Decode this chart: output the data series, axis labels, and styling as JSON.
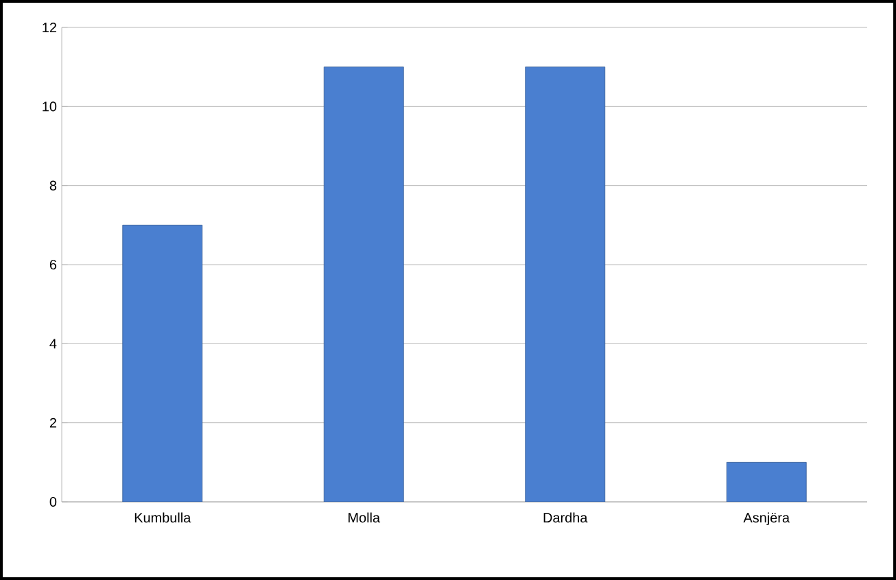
{
  "chart_data": {
    "type": "bar",
    "categories": [
      "Kumbulla",
      "Molla",
      "Dardha",
      "Asnjëra"
    ],
    "values": [
      7,
      11,
      11,
      1
    ],
    "color": "#4a7fd0",
    "ylim": [
      0,
      12
    ],
    "yticks": [
      0,
      2,
      4,
      6,
      8,
      10,
      12
    ],
    "grid": "y"
  }
}
